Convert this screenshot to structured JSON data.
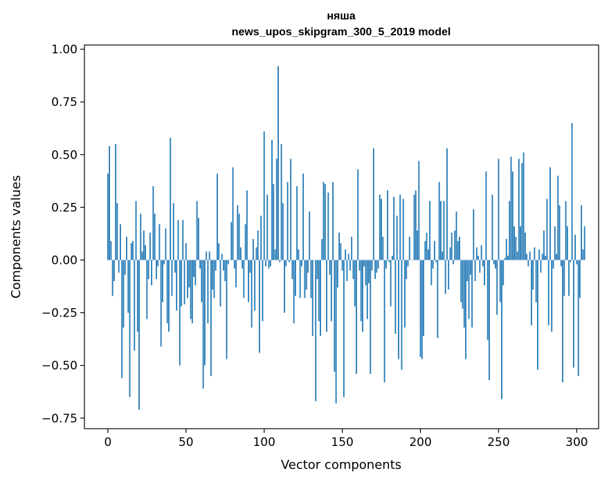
{
  "chart_data": {
    "type": "bar",
    "title": "няша",
    "subtitle": "news_upos_skipgram_300_5_2019 model",
    "xlabel": "Vector components",
    "ylabel": "Components values",
    "xlim": [
      -15,
      314
    ],
    "ylim": [
      -0.8,
      1.02
    ],
    "xticks": [
      0,
      50,
      100,
      150,
      200,
      250,
      300
    ],
    "yticks": [
      -0.75,
      -0.5,
      -0.25,
      0.0,
      0.25,
      0.5,
      0.75,
      1.0
    ],
    "xtick_labels": [
      "0",
      "50",
      "100",
      "150",
      "200",
      "250",
      "300"
    ],
    "ytick_labels": [
      "−0.75",
      "−0.50",
      "−0.25",
      "0.00",
      "0.25",
      "0.50",
      "0.75",
      "1.00"
    ],
    "color": "#1f77b4",
    "values": [
      0.41,
      0.54,
      0.09,
      -0.17,
      -0.1,
      0.55,
      0.27,
      -0.06,
      0.17,
      -0.56,
      -0.32,
      -0.07,
      0.11,
      -0.25,
      -0.65,
      0.08,
      0.09,
      -0.43,
      0.28,
      -0.34,
      -0.71,
      0.22,
      0.04,
      0.14,
      0.07,
      -0.28,
      -0.09,
      0.13,
      -0.12,
      0.35,
      0.22,
      -0.09,
      -0.03,
      0.17,
      -0.41,
      -0.2,
      -0.02,
      0.15,
      -0.3,
      -0.34,
      0.58,
      -0.17,
      0.27,
      -0.06,
      -0.24,
      0.19,
      -0.5,
      -0.22,
      0.19,
      -0.21,
      0.08,
      -0.18,
      -0.13,
      -0.28,
      -0.3,
      -0.08,
      -0.12,
      0.28,
      0.2,
      -0.04,
      -0.2,
      -0.61,
      -0.5,
      0.04,
      -0.3,
      0.04,
      -0.55,
      -0.14,
      -0.18,
      -0.05,
      0.41,
      0.08,
      -0.22,
      0.03,
      -0.05,
      -0.1,
      -0.47,
      -0.02,
      0.0,
      0.18,
      0.44,
      -0.04,
      -0.13,
      0.26,
      0.22,
      0.06,
      -0.04,
      -0.18,
      0.17,
      0.33,
      -0.2,
      -0.06,
      -0.32,
      0.1,
      -0.24,
      0.06,
      0.14,
      -0.44,
      0.21,
      -0.29,
      0.61,
      -0.03,
      0.31,
      -0.04,
      -0.03,
      0.57,
      0.36,
      0.05,
      0.48,
      0.92,
      -0.01,
      0.55,
      0.27,
      -0.25,
      -0.03,
      0.37,
      -0.01,
      0.48,
      -0.09,
      -0.3,
      -0.17,
      0.35,
      0.05,
      -0.18,
      -0.03,
      0.41,
      -0.18,
      -0.14,
      -0.06,
      0.23,
      -0.18,
      -0.36,
      0.0,
      -0.67,
      -0.09,
      -0.29,
      -0.36,
      0.1,
      0.37,
      0.36,
      -0.34,
      0.32,
      -0.07,
      -0.29,
      0.37,
      -0.53,
      -0.68,
      -0.13,
      0.13,
      0.08,
      -0.05,
      -0.65,
      0.05,
      -0.1,
      0.03,
      -0.05,
      0.11,
      -0.09,
      -0.22,
      -0.54,
      0.43,
      -0.05,
      -0.29,
      -0.34,
      -0.03,
      -0.12,
      -0.28,
      -0.11,
      -0.54,
      -0.05,
      0.53,
      -0.09,
      -0.06,
      -0.04,
      0.31,
      0.29,
      0.11,
      -0.58,
      -0.04,
      0.33,
      -0.01,
      -0.22,
      0.02,
      0.3,
      -0.35,
      0.21,
      -0.47,
      0.31,
      -0.52,
      0.29,
      -0.32,
      -0.09,
      -0.03,
      0.11,
      0.0,
      0.0,
      0.31,
      0.33,
      0.14,
      0.47,
      -0.46,
      -0.47,
      -0.36,
      0.09,
      0.13,
      0.05,
      0.28,
      -0.12,
      -0.04,
      0.09,
      -0.01,
      -0.37,
      0.37,
      0.28,
      0.04,
      0.28,
      -0.16,
      0.53,
      -0.14,
      0.06,
      0.13,
      -0.02,
      0.14,
      0.23,
      0.09,
      0.11,
      -0.2,
      -0.23,
      -0.32,
      -0.47,
      -0.1,
      -0.28,
      -0.07,
      -0.32,
      0.24,
      -0.1,
      0.06,
      0.02,
      -0.06,
      0.07,
      -0.03,
      -0.12,
      0.42,
      -0.38,
      -0.57,
      0.0,
      0.31,
      -0.02,
      -0.04,
      -0.26,
      0.48,
      -0.2,
      -0.66,
      -0.12,
      0.01,
      0.1,
      0.02,
      0.28,
      0.49,
      0.42,
      0.16,
      0.11,
      0.04,
      0.48,
      0.16,
      0.46,
      0.51,
      0.13,
      0.03,
      -0.03,
      0.04,
      -0.31,
      -0.14,
      0.06,
      -0.2,
      -0.52,
      0.05,
      -0.06,
      0.03,
      0.14,
      0.02,
      0.29,
      -0.31,
      0.44,
      -0.34,
      -0.04,
      0.16,
      0.03,
      0.4,
      0.26,
      -0.03,
      -0.58,
      -0.17,
      0.28,
      0.16,
      -0.17,
      -0.01,
      0.65,
      -0.51,
      0.12,
      -0.02,
      -0.55,
      -0.18,
      0.26,
      0.05,
      0.16
    ]
  }
}
